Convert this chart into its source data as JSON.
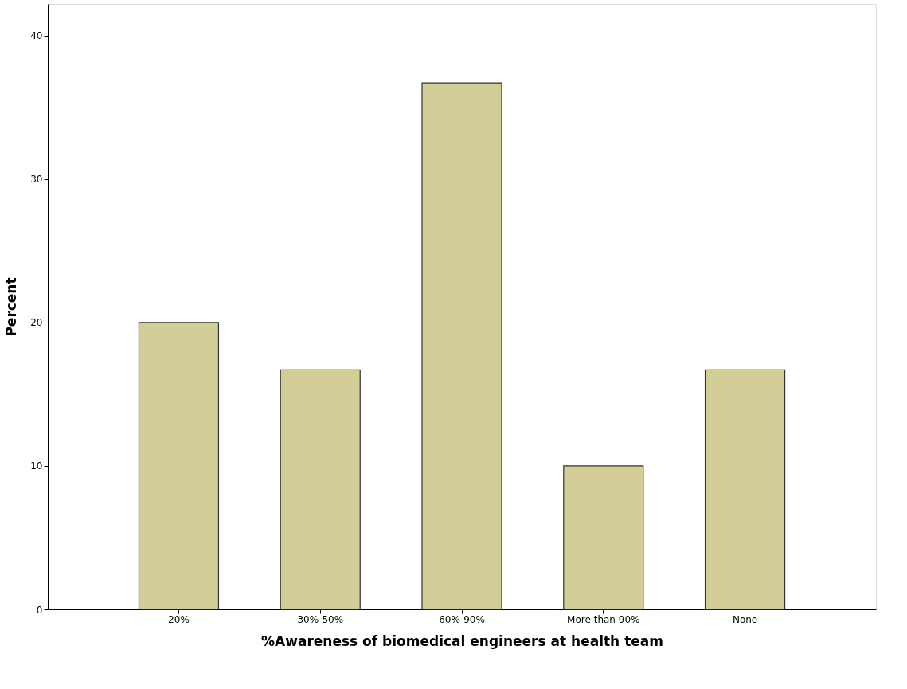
{
  "chart_data": {
    "type": "bar",
    "xlabel": "%Awareness of biomedical engineers at health team",
    "ylabel": "Percent",
    "categories": [
      "20%",
      "30%-50%",
      "60%-90%",
      "More than 90%",
      "None"
    ],
    "values": [
      20,
      16.7,
      36.7,
      10,
      16.7
    ],
    "color": "#d3ce97",
    "ylim": [
      0,
      42.2
    ],
    "yticks": [
      0,
      10,
      20,
      30,
      40
    ],
    "grid": false,
    "legend": false
  }
}
